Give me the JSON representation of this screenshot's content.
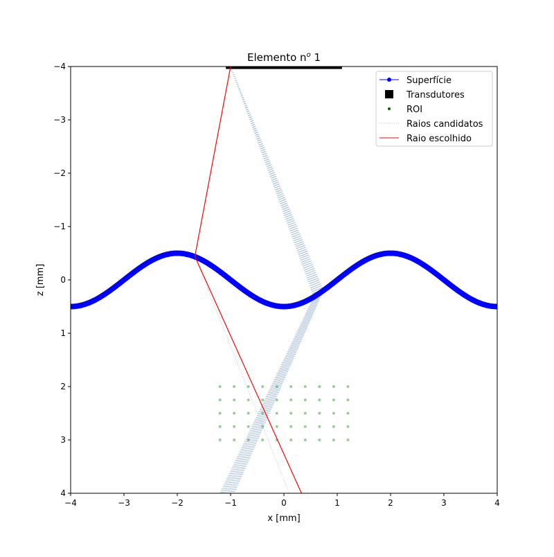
{
  "chart_data": {
    "type": "line",
    "title": "Elemento n",
    "title_sup": "o",
    "title_suffix": " 1",
    "xlabel": "x [mm]",
    "ylabel": "z [mm]",
    "xlim": [
      -4,
      4
    ],
    "ylim": [
      4,
      -4
    ],
    "xticks": [
      "−4",
      "−3",
      "−2",
      "−1",
      "0",
      "1",
      "2",
      "3",
      "4"
    ],
    "yticks": [
      "−4",
      "−3",
      "−2",
      "−1",
      "0",
      "1",
      "2",
      "3",
      "4"
    ],
    "legend": {
      "placement": "top-right",
      "entries": [
        "Superfície",
        "Transdutores",
        "ROI",
        "Raios candidatos",
        "Raio escolhido"
      ]
    },
    "surface": {
      "name": "Superfície",
      "equation": "z = 0.5*cos(pi*x/2)",
      "x_range": [
        -4,
        4
      ],
      "color": "#0000ff"
    },
    "transducers": {
      "name": "Transdutores",
      "x_range": [
        -1.05,
        1.05
      ],
      "z": -3.98,
      "color": "#000000"
    },
    "roi": {
      "name": "ROI",
      "x": [
        -1.2,
        -0.933,
        -0.667,
        -0.4,
        -0.133,
        0.133,
        0.4,
        0.667,
        0.933,
        1.2
      ],
      "z": [
        2,
        2.25,
        2.5,
        2.75,
        3
      ],
      "color": "#2ca02c"
    },
    "candidate_rays": {
      "name": "Raios candidatos",
      "color": "#b0c4de",
      "origin": [
        -1,
        -4
      ],
      "count": 30,
      "surface_x_range": [
        0.56,
        0.74
      ],
      "end_z": 4,
      "end_x_range": [
        -1.2,
        -0.93
      ],
      "extra_ray": [
        [
          -1.67,
          -0.44
        ],
        [
          0.1,
          4
        ]
      ]
    },
    "chosen_ray": {
      "name": "Raio escolhido",
      "color": "#ff0000",
      "points": [
        [
          -1,
          -4
        ],
        [
          -1.67,
          -0.44
        ],
        [
          0.33,
          4
        ]
      ]
    }
  }
}
